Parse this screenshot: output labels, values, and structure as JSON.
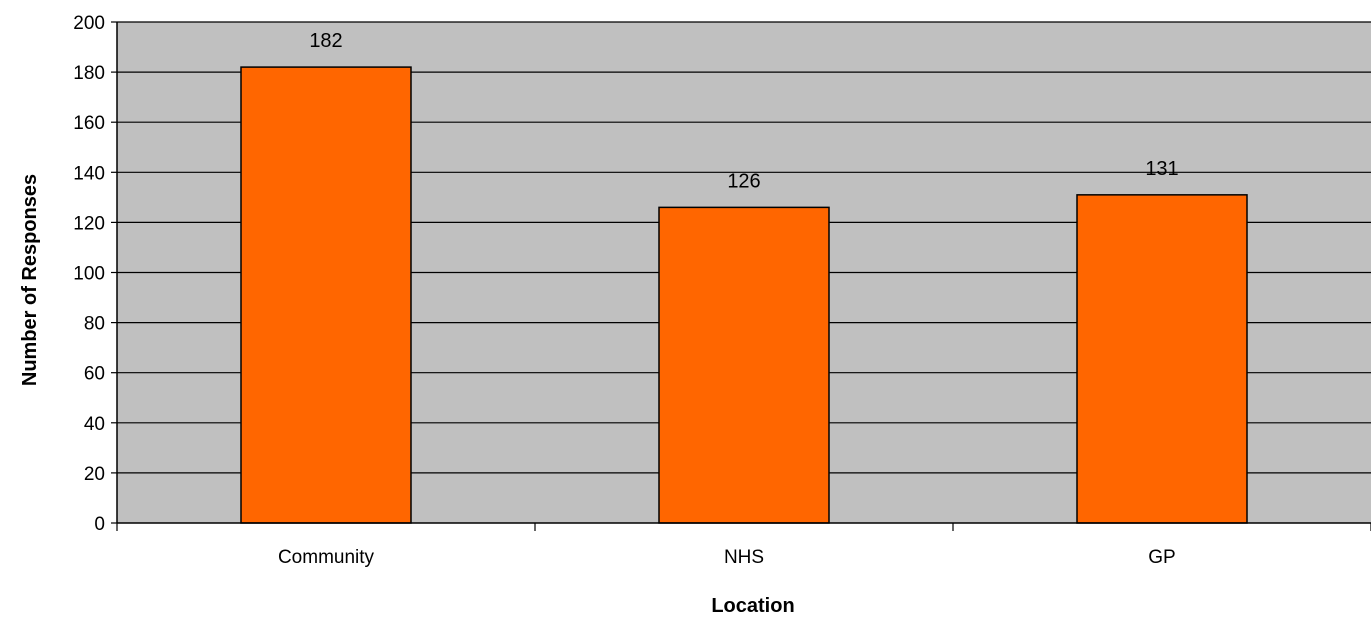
{
  "chart_data": {
    "type": "bar",
    "title": "",
    "xlabel": "Location",
    "ylabel": "Number of Responses",
    "categories": [
      "Community",
      "NHS",
      "GP"
    ],
    "values": [
      182,
      126,
      131
    ],
    "ylim": [
      0,
      200
    ],
    "yticks": [
      0,
      20,
      40,
      60,
      80,
      100,
      120,
      140,
      160,
      180,
      200
    ],
    "grid": true,
    "legend": "none",
    "colors": {
      "bar_fill": "#FF6600",
      "plot_background": "#C0C0C0",
      "gridline": "#000000"
    }
  }
}
